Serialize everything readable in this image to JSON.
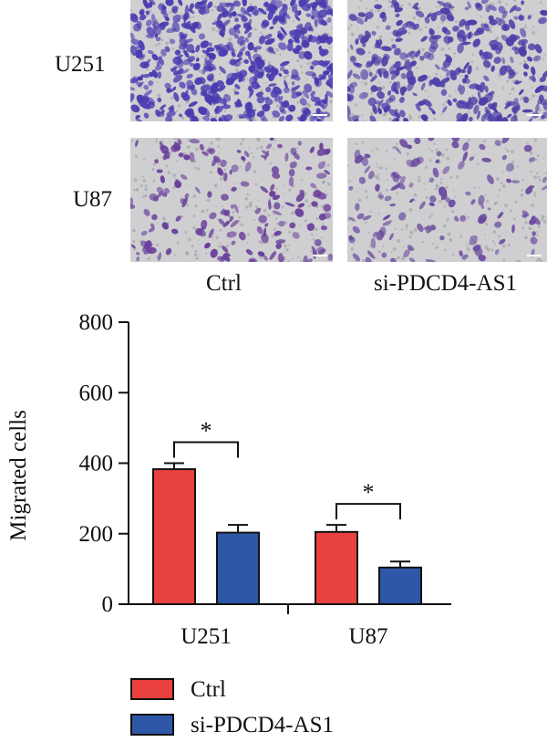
{
  "panel_a": {
    "row_labels": [
      "U251",
      "U87"
    ],
    "column_labels": [
      "Ctrl",
      "si-PDCD4-AS1"
    ],
    "images": [
      {
        "name": "U251-Ctrl",
        "stain": "dense",
        "color": "#4a3bb0"
      },
      {
        "name": "U251-si-PDCD4-AS1",
        "stain": "medium",
        "color": "#4c3ea8"
      },
      {
        "name": "U87-Ctrl",
        "stain": "sparse",
        "color": "#6a3f9a"
      },
      {
        "name": "U87-si-PDCD4-AS1",
        "stain": "sparser",
        "color": "#6b4a9e"
      }
    ]
  },
  "chart_data": {
    "type": "bar",
    "title": "",
    "xlabel": "",
    "ylabel": "Migrated cells",
    "ylim": [
      0,
      800
    ],
    "yticks": [
      0,
      200,
      400,
      600,
      800
    ],
    "categories": [
      "U251",
      "U87"
    ],
    "series": [
      {
        "name": "Ctrl",
        "color": "#e8413f",
        "values": [
          383,
          205
        ],
        "errors": [
          17,
          20
        ]
      },
      {
        "name": "si-PDCD4-AS1",
        "color": "#2f57a8",
        "values": [
          203,
          104
        ],
        "errors": [
          22,
          17
        ]
      }
    ],
    "significance": [
      "*",
      "*"
    ],
    "legend_position": "bottom-left"
  }
}
